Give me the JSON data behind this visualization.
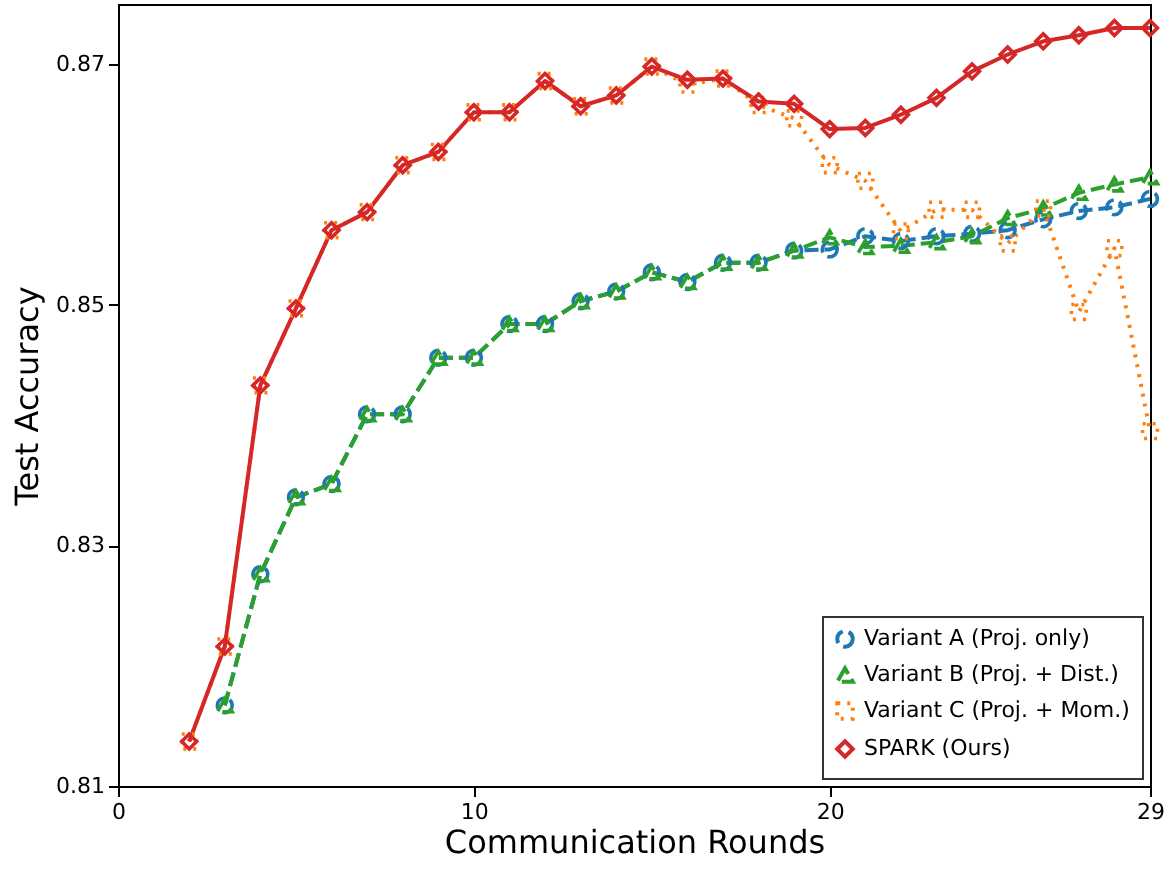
{
  "chart_data": {
    "type": "line",
    "xlabel": "Communication Rounds",
    "ylabel": "Test Accuracy",
    "xlim": [
      0,
      29
    ],
    "xticks": [
      0,
      10,
      20,
      29
    ],
    "ylim": [
      0.81,
      0.875
    ],
    "yticks": [
      0.81,
      0.83,
      0.85,
      0.87
    ],
    "grid": false,
    "legend": "bottom right",
    "series": [
      {
        "name": "Variant A (Proj. only)",
        "color": "#1f77b4",
        "marker": "circle",
        "line_style": "dashed",
        "x": [
          3,
          4,
          5,
          6,
          7,
          8,
          9,
          10,
          11,
          12,
          13,
          14,
          15,
          16,
          17,
          18,
          19,
          20,
          21,
          22,
          23,
          24,
          25,
          26,
          27,
          28,
          29
        ],
        "values": [
          0.8167,
          0.8276,
          0.834,
          0.8351,
          0.8409,
          0.8409,
          0.8456,
          0.8456,
          0.8484,
          0.8484,
          0.8503,
          0.8511,
          0.8527,
          0.8519,
          0.8535,
          0.8535,
          0.8545,
          0.8546,
          0.8557,
          0.8553,
          0.8557,
          0.8559,
          0.8562,
          0.8571,
          0.8578,
          0.8581,
          0.8588
        ]
      },
      {
        "name": "Variant B (Proj. + Dist.)",
        "color": "#2ca02c",
        "marker": "triangle",
        "line_style": "dashed",
        "x": [
          3,
          4,
          5,
          6,
          7,
          8,
          9,
          10,
          11,
          12,
          13,
          14,
          15,
          16,
          17,
          18,
          19,
          20,
          21,
          22,
          23,
          24,
          25,
          26,
          27,
          28,
          29
        ],
        "values": [
          0.8167,
          0.8276,
          0.834,
          0.8351,
          0.8409,
          0.8409,
          0.8456,
          0.8456,
          0.8484,
          0.8484,
          0.8503,
          0.8511,
          0.8527,
          0.8519,
          0.8535,
          0.8535,
          0.8545,
          0.8556,
          0.8548,
          0.8549,
          0.8552,
          0.8557,
          0.8572,
          0.858,
          0.8593,
          0.86,
          0.8606
        ]
      },
      {
        "name": "Variant C (Proj. + Mom.)",
        "color": "#ff7f0e",
        "marker": "square",
        "line_style": "dotted",
        "x": [
          2,
          3,
          4,
          5,
          6,
          7,
          8,
          9,
          10,
          11,
          12,
          13,
          14,
          15,
          16,
          17,
          18,
          19,
          20,
          21,
          22,
          23,
          24,
          25,
          26,
          27,
          28,
          29
        ],
        "values": [
          0.8137,
          0.8216,
          0.8433,
          0.8497,
          0.8562,
          0.8577,
          0.8616,
          0.8627,
          0.866,
          0.866,
          0.8686,
          0.8665,
          0.8674,
          0.8698,
          0.8683,
          0.8688,
          0.8666,
          0.8655,
          0.8616,
          0.8603,
          0.8561,
          0.8579,
          0.8579,
          0.8551,
          0.858,
          0.8494,
          0.8547,
          0.8395
        ]
      },
      {
        "name": "SPARK (Ours)",
        "color": "#d62728",
        "marker": "diamond",
        "line_style": "solid",
        "x": [
          2,
          3,
          4,
          5,
          6,
          7,
          8,
          9,
          10,
          11,
          12,
          13,
          14,
          15,
          16,
          17,
          18,
          19,
          20,
          21,
          22,
          23,
          24,
          25,
          26,
          27,
          28,
          29
        ],
        "values": [
          0.8137,
          0.8216,
          0.8433,
          0.8497,
          0.8562,
          0.8577,
          0.8616,
          0.8627,
          0.866,
          0.866,
          0.8686,
          0.8665,
          0.8674,
          0.8698,
          0.8687,
          0.8688,
          0.8669,
          0.8667,
          0.8646,
          0.8647,
          0.8658,
          0.8672,
          0.8694,
          0.8708,
          0.8719,
          0.8724,
          0.873,
          0.873
        ]
      }
    ]
  }
}
